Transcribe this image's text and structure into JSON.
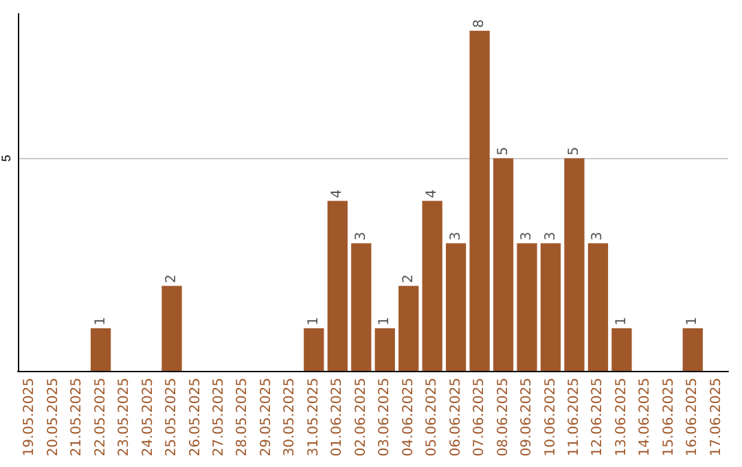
{
  "chart_data": {
    "type": "bar",
    "categories": [
      "19.05.2025",
      "20.05.2025",
      "21.05.2025",
      "22.05.2025",
      "23.05.2025",
      "24.05.2025",
      "25.05.2025",
      "26.05.2025",
      "27.05.2025",
      "28.05.2025",
      "29.05.2025",
      "30.05.2025",
      "31.05.2025",
      "01.06.2025",
      "02.06.2025",
      "03.06.2025",
      "04.06.2025",
      "05.06.2025",
      "06.06.2025",
      "07.06.2025",
      "08.06.2025",
      "09.06.2025",
      "10.06.2025",
      "11.06.2025",
      "12.06.2025",
      "13.06.2025",
      "14.06.2025",
      "15.06.2025",
      "16.06.2025",
      "17.06.2025"
    ],
    "values": [
      0,
      0,
      0,
      1,
      0,
      0,
      2,
      0,
      0,
      0,
      0,
      0,
      1,
      4,
      3,
      1,
      2,
      4,
      3,
      8,
      5,
      3,
      3,
      5,
      3,
      1,
      0,
      0,
      1,
      0
    ],
    "value_labels": [
      null,
      null,
      null,
      "1",
      null,
      null,
      "2",
      null,
      null,
      null,
      null,
      null,
      "1",
      "4",
      "3",
      "1",
      "2",
      "4",
      "3",
      "8",
      "5",
      "3",
      "3",
      "5",
      "3",
      "1",
      null,
      null,
      "1",
      null
    ],
    "color": "#a0582a",
    "ylim": [
      0,
      8.4
    ],
    "yticks": [
      5
    ],
    "grid": "y"
  }
}
